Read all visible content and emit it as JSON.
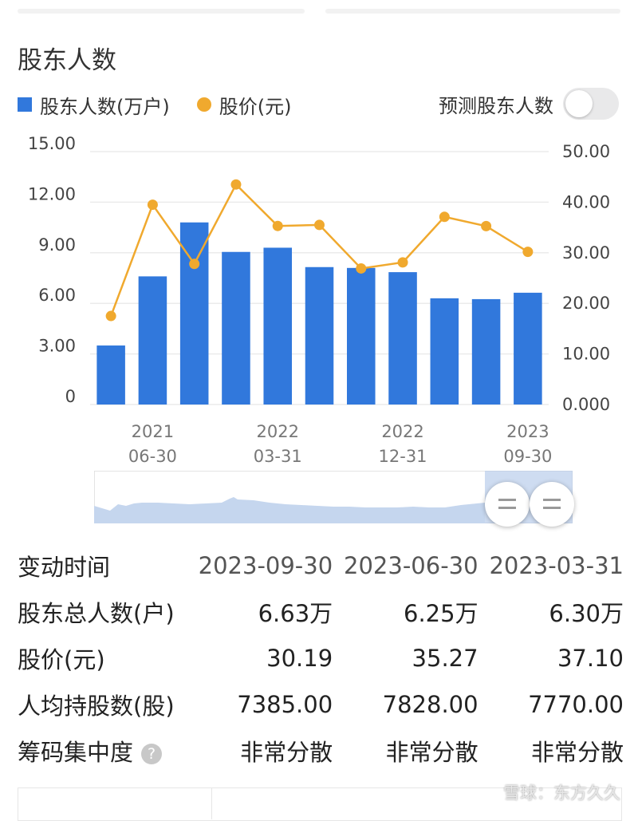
{
  "section_title": "股东人数",
  "legend": {
    "holders": "股东人数(万户)",
    "price": "股价(元)"
  },
  "predict_label": "预测股东人数",
  "predict_toggle_on": false,
  "colors": {
    "bar": "#3178dc",
    "line": "#f0a92e",
    "grid": "#ebebeb",
    "tick": "#444444"
  },
  "chart_data": {
    "type": "bar",
    "categories": [
      "2021-03-31",
      "2021-06-30",
      "2021-09-30",
      "2021-12-31",
      "2022-03-31",
      "2022-06-30",
      "2022-09-30",
      "2022-12-31",
      "2023-03-31",
      "2023-06-30",
      "2023-09-30"
    ],
    "x_tick_labels": [
      {
        "index": 1,
        "top": "2021",
        "bottom": "06-30"
      },
      {
        "index": 4,
        "top": "2022",
        "bottom": "03-31"
      },
      {
        "index": 7,
        "top": "2022",
        "bottom": "12-31"
      },
      {
        "index": 10,
        "top": "2023",
        "bottom": "09-30"
      }
    ],
    "series": [
      {
        "name": "股东人数(万户)",
        "type": "bar",
        "axis": "left",
        "values": [
          3.5,
          7.6,
          10.8,
          9.05,
          9.3,
          8.15,
          8.1,
          7.85,
          6.3,
          6.25,
          6.63
        ]
      },
      {
        "name": "股价(元)",
        "type": "line",
        "axis": "right",
        "values": [
          17.5,
          39.5,
          27.8,
          43.5,
          35.3,
          35.5,
          26.9,
          28.1,
          37.1,
          35.27,
          30.19
        ]
      }
    ],
    "y_left": {
      "ylim": [
        0,
        15
      ],
      "ticks": [
        "0",
        "3.00",
        "6.00",
        "9.00",
        "12.00",
        "15.00"
      ]
    },
    "y_right": {
      "ylim": [
        0,
        50
      ],
      "ticks": [
        "0.000",
        "10.00",
        "20.00",
        "30.00",
        "40.00",
        "50.00"
      ]
    },
    "grid": true
  },
  "table": {
    "header": {
      "label": "变动时间",
      "values": [
        "2023-09-30",
        "2023-06-30",
        "2023-03-31"
      ]
    },
    "rows": [
      {
        "label": "股东总人数(户)",
        "values": [
          "6.63万",
          "6.25万",
          "6.30万"
        ]
      },
      {
        "label": "股价(元)",
        "values": [
          "30.19",
          "35.27",
          "37.10"
        ]
      },
      {
        "label": "人均持股数(股)",
        "values": [
          "7385.00",
          "7828.00",
          "7770.00"
        ]
      },
      {
        "label": "筹码集中度",
        "help": "?",
        "values": [
          "非常分散",
          "非常分散",
          "非常分散"
        ]
      }
    ]
  },
  "watermark": "雪球：东方久久"
}
